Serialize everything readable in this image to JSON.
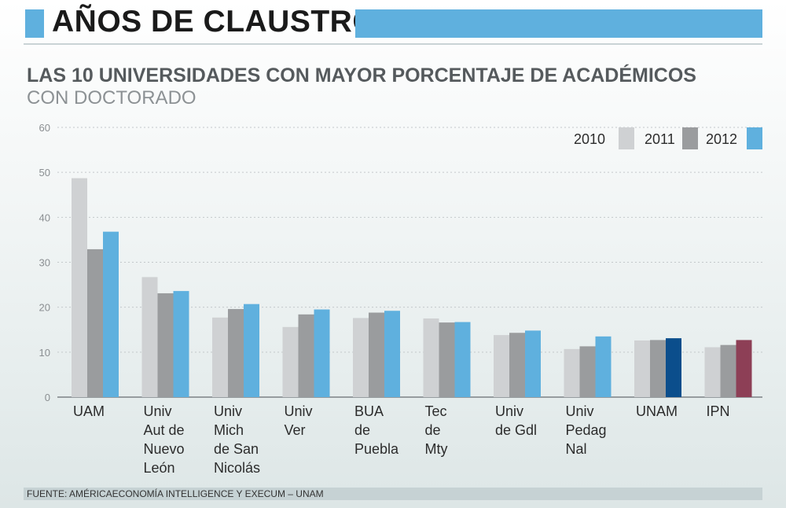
{
  "title": "AÑOS DE CLAUSTRO",
  "subtitle": "LAS 10 UNIVERSIDADES CON MAYOR PORCENTAJE DE ACADÉMICOS",
  "subtitle2": "CON DOCTORADO",
  "source": "FUENTE: AMÉRICAECONOMÍA INTELLIGENCE Y EXECUM – UNAM",
  "colors": {
    "header": "#5fb0de",
    "s2010": "#cfd1d3",
    "s2011": "#9a9c9e",
    "s2012": "#5fb0de",
    "unam2012": "#0b4e8c",
    "ipn2012": "#8d3f56"
  },
  "chart_data": {
    "type": "bar",
    "categories": [
      [
        "UAM"
      ],
      [
        "Univ",
        "Aut de",
        "Nuevo",
        "León"
      ],
      [
        "Univ",
        "Mich",
        "de San",
        "Nicolás"
      ],
      [
        "Univ",
        "Ver"
      ],
      [
        "BUA",
        "de",
        "Puebla"
      ],
      [
        "Tec",
        "de",
        "Mty"
      ],
      [
        "Univ",
        "de Gdl"
      ],
      [
        "Univ",
        "Pedag",
        "Nal"
      ],
      [
        "UNAM"
      ],
      [
        "IPN"
      ]
    ],
    "series": [
      {
        "name": "2010",
        "values": [
          48.7,
          26.7,
          17.7,
          15.6,
          17.6,
          17.5,
          13.8,
          10.7,
          12.6,
          11.1
        ]
      },
      {
        "name": "2011",
        "values": [
          32.9,
          23.1,
          19.6,
          18.4,
          18.8,
          16.6,
          14.3,
          11.3,
          12.7,
          11.6
        ]
      },
      {
        "name": "2012",
        "values": [
          36.8,
          23.6,
          20.7,
          19.5,
          19.2,
          16.7,
          14.8,
          13.5,
          13.1,
          12.7
        ]
      }
    ],
    "yticks": [
      0,
      10,
      20,
      30,
      40,
      50,
      60
    ],
    "ylim": [
      0,
      60
    ],
    "grid": true,
    "legend_position": "top-right"
  }
}
